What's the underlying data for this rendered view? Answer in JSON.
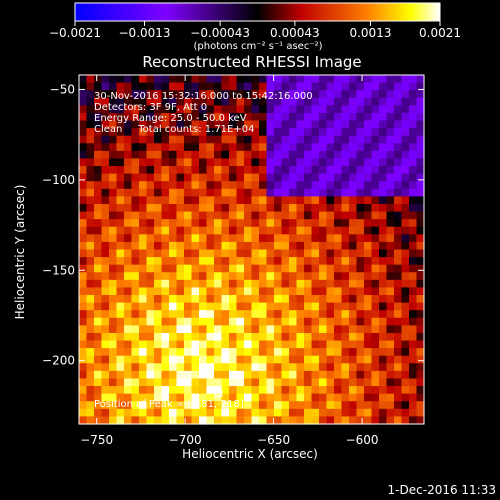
{
  "chart_data": {
    "type": "heatmap",
    "title": "Reconstructed RHESSI Image",
    "xlabel": "Heliocentric X (arcsec)",
    "ylabel": "Heliocentric Y (arcsec)",
    "xlim": [
      -760,
      -565
    ],
    "ylim": [
      -235,
      -42
    ],
    "x_ticks": [
      -750,
      -700,
      -650,
      -600
    ],
    "y_ticks": [
      -50,
      -100,
      -150,
      -200
    ],
    "x_tick_labels": [
      "−750",
      "−700",
      "−650",
      "−600"
    ],
    "y_tick_labels": [
      "−50",
      "−100",
      "−150",
      "−200"
    ],
    "colorbar": {
      "range": [
        -0.0021,
        0.0021
      ],
      "ticks": [
        -0.0021,
        -0.0013,
        -0.00043,
        0.00043,
        0.0013,
        0.0021
      ],
      "tick_labels": [
        "−0.0021",
        "−0.0013",
        "−0.00043",
        "0.00043",
        "0.0013",
        "0.0021"
      ],
      "unit_label": "(photons cm⁻² s⁻¹ asec⁻²)",
      "colormap": "blue-purple-red-yellow-white"
    },
    "annotations": [
      "30-Nov-2016 15:32:16.000 to 15:42:16.000",
      "Detectors: 3F 9F, Att 0",
      "Energy Range: 25.0 - 50.0 keV",
      "Clean     Total counts: 1.71E+04"
    ],
    "peak_label": "Position of Peak = [-681,-218]",
    "peak": {
      "x": -681,
      "y": -218
    }
  },
  "footer": {
    "timestamp": "1-Dec-2016 11:33"
  }
}
